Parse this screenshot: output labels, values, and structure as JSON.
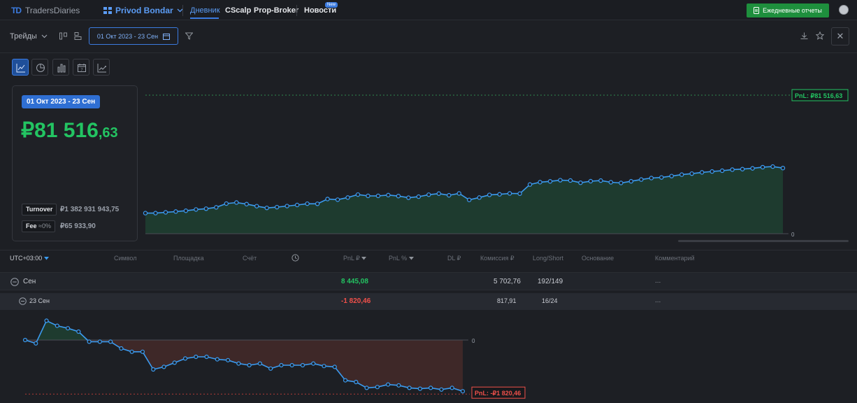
{
  "topbar": {
    "logo_mark": "TD",
    "logo_text": "TradersDiaries",
    "account_name": "Privod Bondar",
    "nav": [
      {
        "label": "Дневник"
      },
      {
        "label": "CScalp"
      },
      {
        "label": "Prop-Broker"
      },
      {
        "label": "Новости"
      }
    ],
    "new_badge": "New",
    "daily_reports_label": "Ежедневные отчеты"
  },
  "toolbar": {
    "trades_label": "Трейды",
    "date_range": "01 Окт 2023 - 23 Сен"
  },
  "summary": {
    "range_badge": "01 Окт 2023 - 23 Сен",
    "pnl_main": "₽81 516",
    "pnl_cents": ",63",
    "turnover_label": "Turnover",
    "turnover_value": "₽1 382 931 943,75",
    "fee_label": "Fee",
    "fee_pct": "≈0%",
    "fee_value": "₽65 933,90"
  },
  "chart_data": [
    {
      "type": "area",
      "values": [
        21.0,
        21.0,
        21.8,
        22.6,
        23.4,
        24.7,
        25.5,
        26.9,
        30.7,
        31.8,
        30.2,
        28.1,
        26.3,
        27.1,
        28.2,
        29.3,
        30.6,
        30.5,
        35.4,
        34.7,
        36.9,
        39.9,
        38.6,
        38.6,
        39.4,
        38.4,
        36.7,
        37.8,
        39.8,
        40.9,
        39.2,
        41.1,
        34.5,
        36.9,
        39.6,
        40.2,
        41.1,
        40.9,
        50.2,
        52.6,
        53.4,
        54.6,
        54.3,
        52.0,
        53.6,
        54.2,
        52.5,
        51.8,
        53.5,
        55.3,
        56.8,
        57.4,
        58.8,
        60.3,
        61.3,
        62.6,
        63.5,
        64.3,
        65.4,
        65.9,
        66.7,
        67.9,
        68.5,
        67.0
      ],
      "end_label": "PnL: ₽81 516,63",
      "zero_label": "0",
      "color": "#3b9bf0",
      "fill": "#1e3b2f"
    },
    {
      "type": "area",
      "values": [
        0,
        -4,
        23,
        17,
        14,
        10,
        -2,
        -2,
        -2,
        -10,
        -14,
        -14,
        -35,
        -32,
        -27,
        -22,
        -20,
        -20,
        -23,
        -24,
        -28,
        -30,
        -28,
        -34,
        -30,
        -30,
        -30,
        -28,
        -31,
        -32,
        -48,
        -50,
        -57,
        -56,
        -53,
        -54,
        -57,
        -58,
        -57,
        -59,
        -57,
        -61
      ],
      "end_label": "PnL: -₽1 820,46",
      "zero_label": "0",
      "color": "#3b9bf0",
      "pos_fill": "#1e3b2f",
      "neg_fill": "#3e2828"
    }
  ],
  "table": {
    "timezone": "UTC+03:00",
    "columns": {
      "symbol": "Символ",
      "venue": "Площадка",
      "account": "Счёт",
      "pnl": "PnL ₽",
      "pnl_pct": "PnL %",
      "dl": "DL ₽",
      "commission": "Комиссия ₽",
      "long_short": "Long/Short",
      "reason": "Основание",
      "comment": "Комментарий"
    },
    "month_row": {
      "label": "Сен",
      "pnl": "8 445,08",
      "commission": "5 702,76",
      "long_short": "192/149",
      "comment": "..."
    },
    "day_row": {
      "label": "23 Сен",
      "pnl": "-1 820,46",
      "commission": "817,91",
      "long_short": "16/24",
      "comment": "..."
    }
  }
}
